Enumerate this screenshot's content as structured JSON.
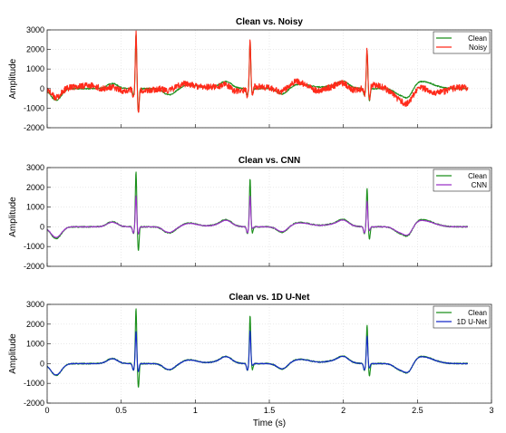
{
  "chart_data": [
    {
      "type": "line",
      "title": "Clean vs. Noisy",
      "ylabel": "Amplitude",
      "xlabel": "",
      "xlim": [
        0,
        3
      ],
      "ylim": [
        -2000,
        3000
      ],
      "yticks": [
        "3000",
        "2000",
        "1000",
        "0",
        "-1000",
        "-2000"
      ],
      "xticks": [],
      "grid": true,
      "legend_position": "top-right",
      "series": [
        {
          "name": "Clean",
          "color": "#1a8f1a",
          "key": "clean"
        },
        {
          "name": "Noisy",
          "color": "#ff2a1a",
          "key": "noisy"
        }
      ]
    },
    {
      "type": "line",
      "title": "Clean vs.  CNN",
      "ylabel": "Amplitude",
      "xlabel": "",
      "xlim": [
        0,
        3
      ],
      "ylim": [
        -2000,
        3000
      ],
      "yticks": [
        "3000",
        "2000",
        "1000",
        "0",
        "-1000",
        "-2000"
      ],
      "xticks": [],
      "grid": true,
      "legend_position": "top-right",
      "series": [
        {
          "name": "Clean",
          "color": "#1a8f1a",
          "key": "clean"
        },
        {
          "name": "CNN",
          "color": "#9b30c8",
          "key": "cnn"
        }
      ]
    },
    {
      "type": "line",
      "title": "Clean vs. 1D U-Net",
      "ylabel": "Amplitude",
      "xlabel": "Time (s)",
      "xlim": [
        0,
        3
      ],
      "ylim": [
        -2000,
        3000
      ],
      "yticks": [
        "3000",
        "2000",
        "1000",
        "0",
        "-1000",
        "-2000"
      ],
      "xticks": [
        "0",
        "0.5",
        "1",
        "1.5",
        "2",
        "2.5",
        "3"
      ],
      "grid": true,
      "legend_position": "top-right",
      "series": [
        {
          "name": "Clean",
          "color": "#1a8f1a",
          "key": "clean"
        },
        {
          "name": "1D U-Net",
          "color": "#1428c8",
          "key": "unet"
        }
      ]
    }
  ],
  "signal": {
    "x_end": 2.84,
    "beats": [
      {
        "t": 0.6,
        "clean_peak": 2800,
        "clean_trough": -1200,
        "noisy_peak": 2950,
        "cnn_peak": 1750,
        "unet_peak": 1700
      },
      {
        "t": 1.37,
        "clean_peak": 2450,
        "clean_trough": -300,
        "noisy_peak": 2450,
        "cnn_peak": 1750,
        "unet_peak": 1750
      },
      {
        "t": 2.16,
        "clean_peak": 1950,
        "clean_trough": -650,
        "noisy_peak": 1950,
        "cnn_peak": 1450,
        "unet_peak": 1450
      }
    ]
  }
}
